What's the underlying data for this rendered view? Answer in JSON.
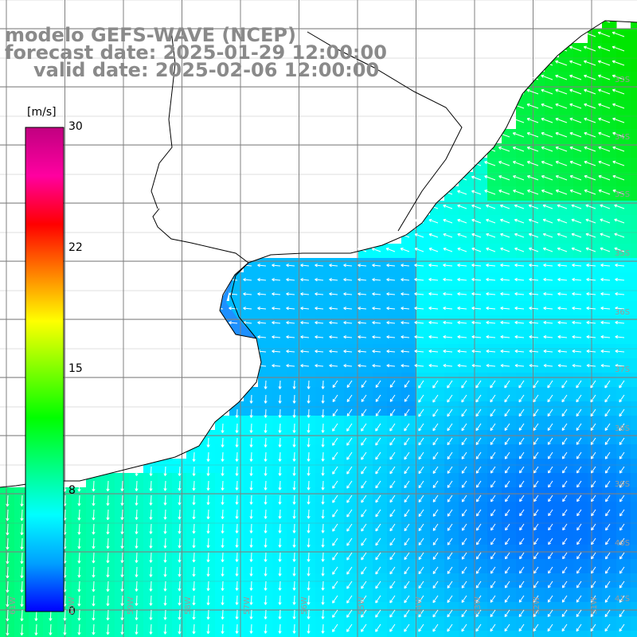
{
  "title": {
    "line1": "modelo GEFS-WAVE (NCEP)",
    "line2": "forecast date: 2025-01-29 12:00:00",
    "line3": "valid date: 2025-02-06 12:00:00"
  },
  "colorbar": {
    "unit": "[m/s]",
    "ticks": [
      "30",
      "22",
      "15",
      "8",
      "0"
    ],
    "tick_values": [
      30,
      22,
      15,
      8,
      0
    ],
    "colors": [
      "#0000ff",
      "#00a0ff",
      "#00ffff",
      "#00ff80",
      "#00ff00",
      "#80ff00",
      "#ffff00",
      "#ff8000",
      "#ff0000",
      "#ff00a0",
      "#c00080"
    ]
  },
  "map": {
    "lat_labels": [
      "33S",
      "34S",
      "35S",
      "36S",
      "37S",
      "38S",
      "39S",
      "40S",
      "41S"
    ],
    "lon_labels": [
      "61W",
      "60W",
      "59W",
      "58W",
      "57W",
      "56W",
      "55W",
      "54W",
      "53W",
      "52W",
      "51W"
    ],
    "land_color": "#ffffff",
    "grid_color": "#808080",
    "coast_color": "#000000",
    "arrow_color": "#ffffff"
  }
}
